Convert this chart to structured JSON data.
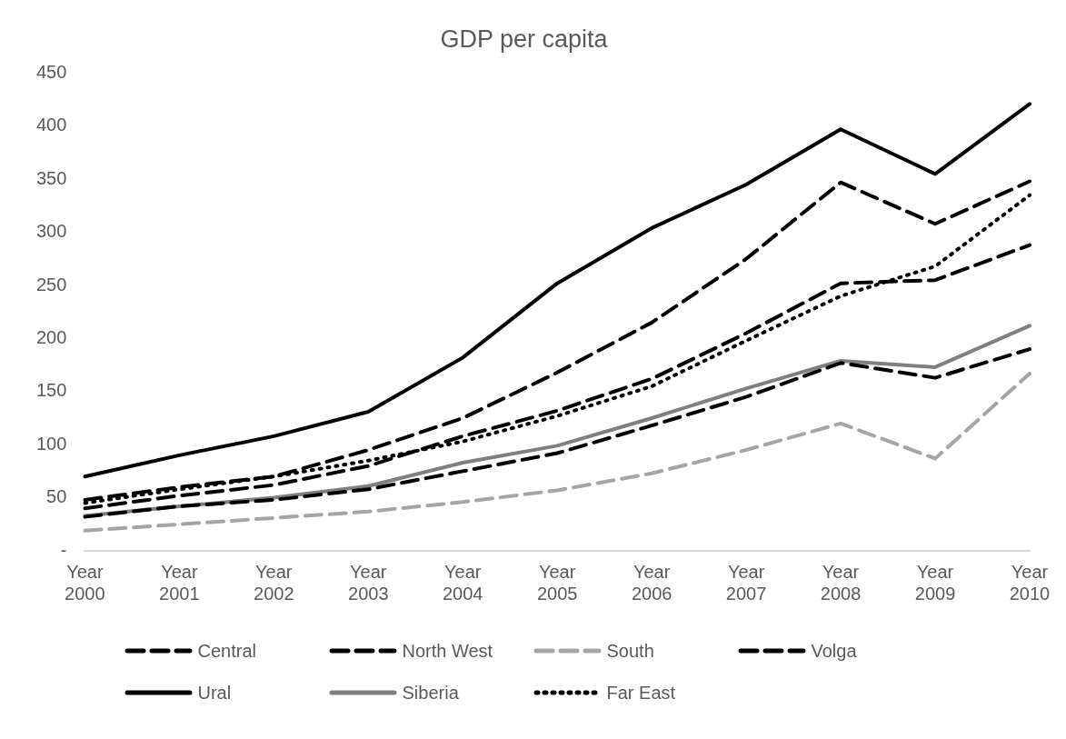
{
  "chart_data": {
    "type": "line",
    "title": "GDP per capita",
    "categories": [
      "Year 2000",
      "Year 2001",
      "Year 2002",
      "Year 2003",
      "Year 2004",
      "Year 2005",
      "Year 2006",
      "Year 2007",
      "Year 2008",
      "Year 2009",
      "Year 2010"
    ],
    "series": [
      {
        "name": "Central",
        "color": "#000000",
        "line_style": "dashed",
        "values": [
          48,
          60,
          70,
          95,
          125,
          168,
          215,
          275,
          347,
          308,
          348
        ]
      },
      {
        "name": "North West",
        "color": "#000000",
        "line_style": "dashed",
        "values": [
          40,
          52,
          62,
          80,
          108,
          132,
          162,
          205,
          252,
          255,
          288
        ]
      },
      {
        "name": "South",
        "color": "#a5a5a5",
        "line_style": "dashed",
        "values": [
          19,
          25,
          31,
          37,
          46,
          57,
          73,
          95,
          120,
          87,
          167
        ]
      },
      {
        "name": "Volga",
        "color": "#000000",
        "line_style": "dashed",
        "values": [
          32,
          42,
          48,
          58,
          75,
          92,
          118,
          145,
          177,
          163,
          190
        ]
      },
      {
        "name": "Ural",
        "color": "#000000",
        "line_style": "solid",
        "values": [
          70,
          90,
          108,
          131,
          182,
          252,
          304,
          345,
          397,
          355,
          421
        ]
      },
      {
        "name": "Siberia",
        "color": "#7f7f7f",
        "line_style": "solid",
        "values": [
          33,
          42,
          50,
          61,
          83,
          99,
          125,
          153,
          179,
          173,
          212
        ]
      },
      {
        "name": "Far East",
        "color": "#000000",
        "line_style": "dotted",
        "values": [
          45,
          58,
          70,
          85,
          103,
          127,
          155,
          198,
          240,
          268,
          335
        ]
      }
    ],
    "ylim": [
      0,
      450
    ],
    "yticks": [
      {
        "value": 0,
        "label": "-"
      },
      50,
      100,
      150,
      200,
      250,
      300,
      350,
      400,
      450
    ],
    "grid": false,
    "legend": "bottom",
    "marker": "none"
  }
}
